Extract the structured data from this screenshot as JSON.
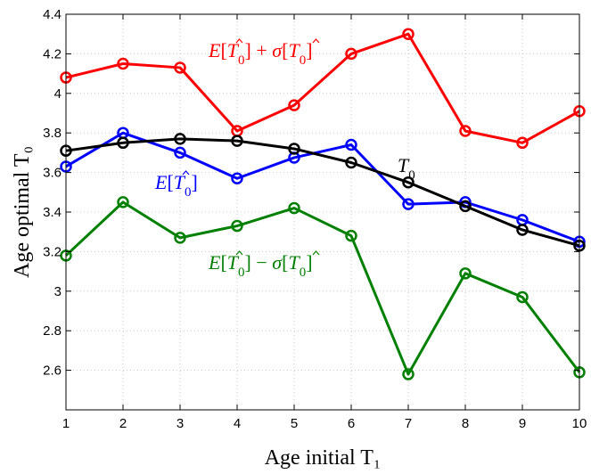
{
  "chart_data": {
    "type": "line",
    "xlabel": "Age initial T₁",
    "ylabel": "Age optimal T₀",
    "x": [
      1,
      2,
      3,
      4,
      5,
      6,
      7,
      8,
      9,
      10
    ],
    "xlim": [
      1,
      10
    ],
    "ylim": [
      2.4,
      4.4
    ],
    "xticks": [
      "1",
      "2",
      "3",
      "4",
      "5",
      "6",
      "7",
      "8",
      "9",
      "10"
    ],
    "yticks": [
      "2.6",
      "2.8",
      "3",
      "3.2",
      "3.4",
      "3.6",
      "3.8",
      "4",
      "4.2",
      "4.4"
    ],
    "ytick_values": [
      2.6,
      2.8,
      3.0,
      3.2,
      3.4,
      3.6,
      3.8,
      4.0,
      4.2,
      4.4
    ],
    "grid": true,
    "series": [
      {
        "key": "upper",
        "name": "E[T̂₀] + σ[T̂₀]",
        "color": "#ff0000",
        "values": [
          4.08,
          4.15,
          4.13,
          3.81,
          3.94,
          4.2,
          4.3,
          3.81,
          3.75,
          3.91
        ]
      },
      {
        "key": "mean",
        "name": "E[T̂₀]",
        "color": "#0000ff",
        "values": [
          3.63,
          3.8,
          3.7,
          3.57,
          3.675,
          3.74,
          3.44,
          3.45,
          3.36,
          3.25
        ]
      },
      {
        "key": "t0",
        "name": "T₀",
        "color": "#000000",
        "values": [
          3.71,
          3.75,
          3.77,
          3.76,
          3.72,
          3.65,
          3.55,
          3.43,
          3.31,
          3.23
        ]
      },
      {
        "key": "lower",
        "name": "E[T̂₀] − σ[T̂₀]",
        "color": "#008000",
        "values": [
          3.18,
          3.45,
          3.27,
          3.33,
          3.42,
          3.28,
          2.58,
          3.09,
          2.97,
          2.59
        ]
      }
    ]
  }
}
